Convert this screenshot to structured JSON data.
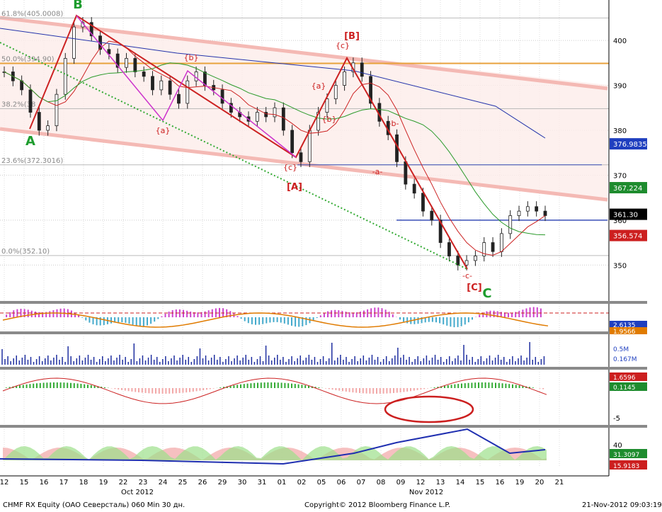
{
  "chart_data": {
    "type": "candlestick",
    "security": "CHMF RX Equity (OAO Северсталь) 060 Min 30 дн.",
    "copyright": "Copyright© 2012 Bloomberg Finance L.P.",
    "timestamp": "21-Nov-2012 09:03:19",
    "ylim": [
      342,
      409
    ],
    "y_ticks": [
      350,
      360,
      370,
      380,
      390,
      400
    ],
    "date_ticks": [
      "12",
      "15",
      "16",
      "17",
      "18",
      "19",
      "22",
      "23",
      "24",
      "25",
      "26",
      "29",
      "30",
      "31",
      "01",
      "02",
      "05",
      "06",
      "07",
      "08",
      "09",
      "12",
      "13",
      "14",
      "15",
      "16",
      "19",
      "20",
      "21"
    ],
    "month_labels": [
      "Oct 2012",
      "Nov 2012"
    ],
    "close_series": [
      393,
      391,
      389,
      384,
      380,
      381,
      388,
      396,
      403,
      404,
      401,
      398,
      397,
      394,
      396,
      393,
      392,
      389,
      391,
      388,
      386,
      391,
      393,
      390,
      389,
      386,
      384,
      383,
      382,
      384,
      383,
      385,
      380,
      375,
      373,
      380,
      384,
      387,
      390,
      393,
      395,
      392,
      386,
      382,
      379,
      373,
      368,
      366,
      362,
      360,
      355,
      352,
      350,
      351,
      352,
      355,
      353,
      357,
      361,
      362,
      363,
      362,
      361
    ],
    "fib_levels": [
      {
        "label": "61.8%(405.0008)",
        "value": 405.0
      },
      {
        "label": "50.0%(394.90)",
        "value": 394.9
      },
      {
        "label": "38.2%(38",
        "value": 384.8
      },
      {
        "label": "23.6%(372.3016)",
        "value": 372.3
      },
      {
        "label": "0.0%(352.10)",
        "value": 352.1
      }
    ],
    "price_tags": [
      {
        "value": "376.9835",
        "color": "#1f3fbf",
        "price": 376.98
      },
      {
        "value": "367.224",
        "color": "#1e8c2e",
        "price": 367.22
      },
      {
        "value": "361.30",
        "color": "#000000",
        "price": 361.3
      },
      {
        "value": "356.574",
        "color": "#cc1f1f",
        "price": 356.57
      }
    ],
    "wave_labels": [
      {
        "text": "A",
        "color": "#1e9c2e"
      },
      {
        "text": "B",
        "color": "#1e9c2e"
      },
      {
        "text": "C",
        "color": "#1e9c2e"
      },
      {
        "text": "[A]",
        "color": "#cc1f1f"
      },
      {
        "text": "[B]",
        "color": "#cc1f1f"
      },
      {
        "text": "[C]",
        "color": "#cc1f1f"
      },
      {
        "text": "{a}",
        "color": "#cc1f1f"
      },
      {
        "text": "{b}",
        "color": "#cc1f1f"
      },
      {
        "text": "{c}",
        "color": "#cc1f1f"
      },
      {
        "text": "{a}",
        "color": "#cc1f1f"
      },
      {
        "text": "{b}",
        "color": "#cc1f1f"
      },
      {
        "text": "{c}",
        "color": "#cc1f1f"
      },
      {
        "text": "-a-",
        "color": "#cc1f1f"
      },
      {
        "text": "-b-",
        "color": "#cc1f1f"
      },
      {
        "text": "-c-",
        "color": "#cc1f1f"
      }
    ],
    "panel2_tags": [
      {
        "value": "2.6135",
        "color": "#1f3fbf"
      },
      {
        "value": "1.9566",
        "color": "#e07b00"
      }
    ],
    "panel3_tags": [
      {
        "value": "0.5M",
        "color": "#1f3fbf"
      },
      {
        "value": "0.167M",
        "color": "#1f3fbf"
      }
    ],
    "panel4_tags": [
      {
        "value": "1.6596",
        "color": "#cc1f1f"
      },
      {
        "value": "0.1145",
        "color": "#1e8c2e"
      }
    ],
    "panel4_ticks": [
      "-5"
    ],
    "panel5_ticks": [
      "40"
    ],
    "panel5_tags": [
      {
        "value": "31.3097",
        "color": "#1e8c2e"
      },
      {
        "value": "15.9183",
        "color": "#cc1f1f"
      }
    ]
  }
}
